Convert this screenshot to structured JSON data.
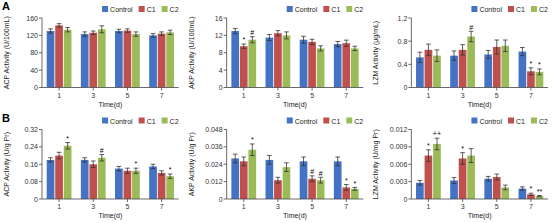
{
  "chart_data": [
    {
      "type": "bar",
      "panel_label": "A",
      "x_label": "Time(d)",
      "y_label": "ACP Activity (U/100mL)",
      "categories": [
        "1",
        "3",
        "5",
        "7"
      ],
      "series": [
        {
          "name": "Control",
          "color": "#4472C4",
          "values": [
            130,
            123,
            130,
            120
          ],
          "errors": [
            5,
            5,
            4,
            4
          ],
          "annotations": [
            null,
            null,
            null,
            null
          ]
        },
        {
          "name": "C1",
          "color": "#C0504D",
          "values": [
            143,
            126,
            131,
            124
          ],
          "errors": [
            4,
            4,
            4,
            4
          ],
          "annotations": [
            null,
            null,
            null,
            null
          ]
        },
        {
          "name": "C2",
          "color": "#9BBB59",
          "values": [
            133,
            134,
            123,
            127
          ],
          "errors": [
            5,
            8,
            5,
            5
          ],
          "annotations": [
            null,
            null,
            null,
            null
          ]
        }
      ],
      "ylim": [
        0,
        160
      ],
      "yticks": [
        0,
        40,
        80,
        120,
        160
      ],
      "grid": false,
      "legend": "upper right"
    },
    {
      "type": "bar",
      "x_label": "Time(d)",
      "y_label": "AKP Activity (U/100mL)",
      "categories": [
        "1",
        "3",
        "5",
        "7"
      ],
      "series": [
        {
          "name": "Control",
          "color": "#4472C4",
          "values": [
            13,
            11.5,
            11,
            10
          ],
          "errors": [
            0.6,
            0.7,
            0.8,
            0.6
          ],
          "annotations": [
            null,
            null,
            null,
            null
          ]
        },
        {
          "name": "C1",
          "color": "#C0504D",
          "values": [
            9.5,
            12.5,
            10.5,
            10.2
          ],
          "errors": [
            0.5,
            0.6,
            0.6,
            0.7
          ],
          "annotations": [
            "*",
            null,
            null,
            null
          ]
        },
        {
          "name": "C2",
          "color": "#9BBB59",
          "values": [
            11,
            12,
            9,
            9
          ],
          "errors": [
            0.7,
            0.8,
            0.6,
            0.5
          ],
          "annotations": [
            "#",
            null,
            null,
            null
          ]
        }
      ],
      "ylim": [
        0,
        16
      ],
      "yticks": [
        0,
        4,
        8,
        12,
        16
      ],
      "grid": false,
      "legend": "upper right"
    },
    {
      "type": "bar",
      "x_label": "Time(d)",
      "y_label": "LZM Activity (μg/mL)",
      "categories": [
        "1",
        "3",
        "5",
        "7"
      ],
      "series": [
        {
          "name": "Control",
          "color": "#4472C4",
          "values": [
            0.52,
            0.55,
            0.57,
            0.62
          ],
          "errors": [
            0.09,
            0.08,
            0.07,
            0.07
          ],
          "annotations": [
            null,
            null,
            null,
            null
          ]
        },
        {
          "name": "C1",
          "color": "#C0504D",
          "values": [
            0.65,
            0.65,
            0.7,
            0.28
          ],
          "errors": [
            0.1,
            0.09,
            0.12,
            0.06
          ],
          "annotations": [
            null,
            null,
            null,
            "*"
          ]
        },
        {
          "name": "C2",
          "color": "#9BBB59",
          "values": [
            0.55,
            0.88,
            0.72,
            0.27
          ],
          "errors": [
            0.1,
            0.09,
            0.1,
            0.05
          ],
          "annotations": [
            null,
            "#",
            null,
            "*"
          ]
        }
      ],
      "ylim": [
        0,
        1.2
      ],
      "yticks": [
        0,
        0.4,
        0.8,
        1.2
      ],
      "grid": false,
      "legend": "upper right"
    },
    {
      "type": "bar",
      "panel_label": "B",
      "x_label": "Time(d)",
      "y_label": "ACP Activity (U/g Pr)",
      "categories": [
        "1",
        "3",
        "5",
        "7"
      ],
      "series": [
        {
          "name": "Control",
          "color": "#4472C4",
          "values": [
            0.18,
            0.18,
            0.14,
            0.15
          ],
          "errors": [
            0.01,
            0.01,
            0.01,
            0.01
          ],
          "annotations": [
            null,
            null,
            null,
            null
          ]
        },
        {
          "name": "C1",
          "color": "#C0504D",
          "values": [
            0.2,
            0.16,
            0.13,
            0.12
          ],
          "errors": [
            0.015,
            0.015,
            0.012,
            0.01
          ],
          "annotations": [
            null,
            null,
            null,
            null
          ]
        },
        {
          "name": "C2",
          "color": "#9BBB59",
          "values": [
            0.245,
            0.19,
            0.13,
            0.105
          ],
          "errors": [
            0.015,
            0.015,
            0.012,
            0.01
          ],
          "annotations": [
            "*",
            "#",
            "*",
            "*"
          ]
        }
      ],
      "ylim": [
        0,
        0.32
      ],
      "yticks": [
        0,
        0.08,
        0.16,
        0.24,
        0.32
      ],
      "grid": false,
      "legend": "upper right"
    },
    {
      "type": "bar",
      "x_label": "Time(d)",
      "y_label": "AKP Activity (U/g Pr)",
      "categories": [
        "1",
        "3",
        "5",
        "7"
      ],
      "series": [
        {
          "name": "Control",
          "color": "#4472C4",
          "values": [
            0.028,
            0.027,
            0.026,
            0.026
          ],
          "errors": [
            0.003,
            0.003,
            0.003,
            0.003
          ],
          "annotations": [
            null,
            null,
            null,
            null
          ]
        },
        {
          "name": "C1",
          "color": "#C0504D",
          "values": [
            0.026,
            0.013,
            0.014,
            0.008
          ],
          "errors": [
            0.003,
            0.002,
            0.002,
            0.002
          ],
          "annotations": [
            null,
            null,
            "#",
            "*"
          ]
        },
        {
          "name": "C2",
          "color": "#9BBB59",
          "values": [
            0.034,
            0.022,
            0.013,
            0.007
          ],
          "errors": [
            0.004,
            0.003,
            0.002,
            0.001
          ],
          "annotations": [
            "*",
            null,
            "#",
            "*"
          ]
        }
      ],
      "ylim": [
        0,
        0.048
      ],
      "yticks": [
        0,
        0.012,
        0.024,
        0.036,
        0.048
      ],
      "grid": false,
      "legend": "upper right"
    },
    {
      "type": "bar",
      "x_label": "Time(d)",
      "y_label": "LZM Activity (U/mg Pr)",
      "categories": [
        "1",
        "3",
        "5",
        "7"
      ],
      "series": [
        {
          "name": "Control",
          "color": "#4472C4",
          "values": [
            0.0028,
            0.0032,
            0.0035,
            0.0018
          ],
          "errors": [
            0.0004,
            0.0005,
            0.0004,
            0.0003
          ],
          "annotations": [
            null,
            null,
            null,
            null
          ]
        },
        {
          "name": "C1",
          "color": "#C0504D",
          "values": [
            0.0075,
            0.007,
            0.0038,
            0.0008
          ],
          "errors": [
            0.001,
            0.001,
            0.0005,
            0.0002
          ],
          "annotations": [
            "*",
            "*",
            null,
            "*"
          ]
        },
        {
          "name": "C2",
          "color": "#9BBB59",
          "values": [
            0.0095,
            0.0075,
            0.002,
            0.0005
          ],
          "errors": [
            0.001,
            0.0012,
            0.0004,
            0.0001
          ],
          "annotations": [
            "++",
            null,
            null,
            "**"
          ]
        }
      ],
      "ylim": [
        0,
        0.012
      ],
      "yticks": [
        0,
        0.003,
        0.006,
        0.009,
        0.012
      ],
      "grid": false,
      "legend": "upper right"
    }
  ]
}
